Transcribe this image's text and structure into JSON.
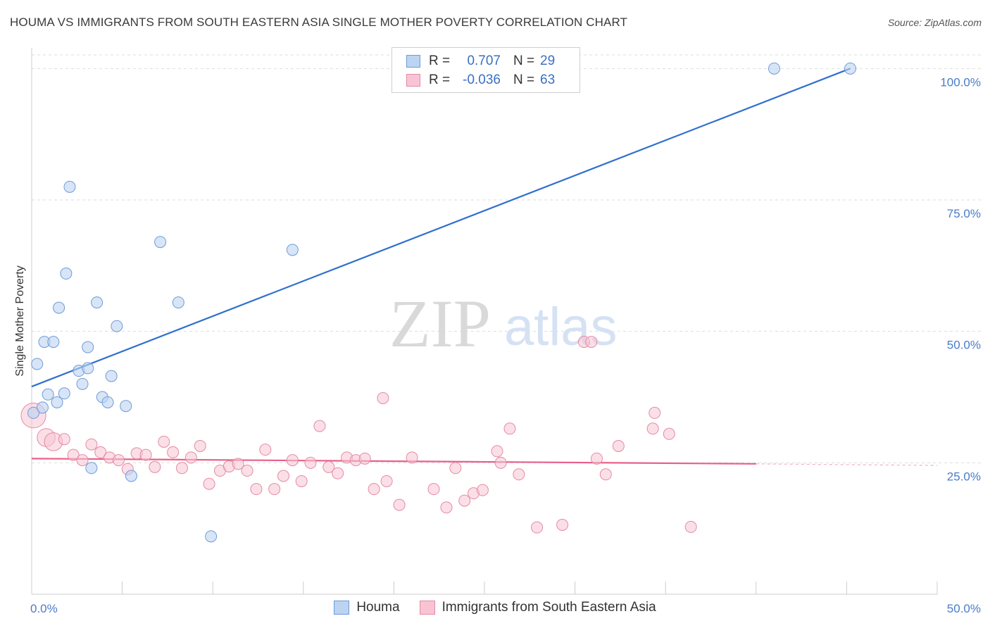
{
  "header": {
    "title": "HOUMA VS IMMIGRANTS FROM SOUTH EASTERN ASIA SINGLE MOTHER POVERTY CORRELATION CHART",
    "source": "Source: ZipAtlas.com"
  },
  "watermark": {
    "zip": "ZIP",
    "atlas": "atlas"
  },
  "legend": {
    "rows": [
      {
        "r_label": "R =",
        "r_value": "0.707",
        "n_label": "N =",
        "n_value": "29"
      },
      {
        "r_label": "R =",
        "r_value": "-0.036",
        "n_label": "N =",
        "n_value": "63"
      }
    ]
  },
  "bottom_legend": {
    "houma": "Houma",
    "sea": "Immigrants from South Eastern Asia"
  },
  "colors": {
    "houma_fill": "#bcd3f2",
    "houma_stroke": "#6f9bd8",
    "houma_line": "#2f6fcf",
    "sea_fill": "#f8c4d3",
    "sea_stroke": "#e48aa6",
    "sea_line": "#e8608a",
    "grid": "#dddddd",
    "axis_text": "#4a7cc9"
  },
  "chart_data": {
    "type": "scatter",
    "title": "HOUMA VS IMMIGRANTS FROM SOUTH EASTERN ASIA SINGLE MOTHER POVERTY CORRELATION CHART",
    "xlabel": "",
    "ylabel": "Single Mother Poverty",
    "xlim": [
      0,
      50
    ],
    "ylim": [
      0,
      105
    ],
    "x_tick_labels": [
      "0.0%",
      "50.0%"
    ],
    "y_ticks": [
      25,
      50,
      75,
      100
    ],
    "y_tick_labels": [
      "25.0%",
      "50.0%",
      "75.0%",
      "100.0%"
    ],
    "grid": true,
    "series": [
      {
        "name": "Houma",
        "r": 0.707,
        "n": 29,
        "points": [
          [
            0.1,
            34.5,
            1
          ],
          [
            0.3,
            43.8,
            1
          ],
          [
            0.6,
            35.5,
            1
          ],
          [
            0.7,
            48.0,
            1
          ],
          [
            0.9,
            38.0,
            1
          ],
          [
            1.2,
            48.0,
            1
          ],
          [
            1.4,
            36.5,
            1
          ],
          [
            1.5,
            54.5,
            1
          ],
          [
            1.8,
            38.2,
            1
          ],
          [
            1.9,
            61.0,
            1
          ],
          [
            2.1,
            77.5,
            1
          ],
          [
            2.6,
            42.5,
            1
          ],
          [
            2.8,
            40.0,
            1
          ],
          [
            3.1,
            43.0,
            1
          ],
          [
            3.1,
            47.0,
            1
          ],
          [
            3.3,
            24.0,
            1
          ],
          [
            3.6,
            55.5,
            1
          ],
          [
            3.9,
            37.5,
            1
          ],
          [
            4.2,
            36.5,
            1
          ],
          [
            4.4,
            41.5,
            1
          ],
          [
            4.7,
            51.0,
            1
          ],
          [
            5.2,
            35.8,
            1
          ],
          [
            5.5,
            22.5,
            1
          ],
          [
            7.1,
            67.0,
            1
          ],
          [
            8.1,
            55.5,
            1
          ],
          [
            9.9,
            11.0,
            1
          ],
          [
            14.4,
            65.5,
            1
          ],
          [
            41.0,
            100.0,
            1
          ],
          [
            45.2,
            100.0,
            1
          ]
        ],
        "trend": {
          "x0": 0.0,
          "y0": 39.5,
          "x1": 45.2,
          "y1": 100.0
        }
      },
      {
        "name": "Immigrants from South Eastern Asia",
        "r": -0.036,
        "n": 63,
        "points": [
          [
            0.1,
            34.0,
            3
          ],
          [
            0.8,
            29.8,
            2
          ],
          [
            1.2,
            29.0,
            2
          ],
          [
            1.8,
            29.5,
            1
          ],
          [
            2.3,
            26.5,
            1
          ],
          [
            2.8,
            25.5,
            1
          ],
          [
            3.3,
            28.5,
            1
          ],
          [
            3.8,
            27.0,
            1
          ],
          [
            4.3,
            26.0,
            1
          ],
          [
            4.8,
            25.5,
            1
          ],
          [
            5.3,
            23.8,
            1
          ],
          [
            5.8,
            26.8,
            1
          ],
          [
            6.3,
            26.5,
            1
          ],
          [
            6.8,
            24.2,
            1
          ],
          [
            7.3,
            29.0,
            1
          ],
          [
            7.8,
            27.0,
            1
          ],
          [
            8.3,
            24.0,
            1
          ],
          [
            8.8,
            26.0,
            1
          ],
          [
            9.3,
            28.2,
            1
          ],
          [
            9.8,
            21.0,
            1
          ],
          [
            10.4,
            23.5,
            1
          ],
          [
            10.9,
            24.3,
            1
          ],
          [
            11.4,
            24.8,
            1
          ],
          [
            11.9,
            23.5,
            1
          ],
          [
            12.4,
            20.0,
            1
          ],
          [
            12.9,
            27.5,
            1
          ],
          [
            13.4,
            20.0,
            1
          ],
          [
            13.9,
            22.5,
            1
          ],
          [
            14.4,
            25.5,
            1
          ],
          [
            14.9,
            21.5,
            1
          ],
          [
            15.4,
            25.0,
            1
          ],
          [
            15.9,
            32.0,
            1
          ],
          [
            16.4,
            24.2,
            1
          ],
          [
            16.9,
            23.0,
            1
          ],
          [
            17.4,
            26.0,
            1
          ],
          [
            17.9,
            25.5,
            1
          ],
          [
            18.4,
            25.8,
            1
          ],
          [
            18.9,
            20.0,
            1
          ],
          [
            19.4,
            37.3,
            1
          ],
          [
            19.6,
            21.5,
            1
          ],
          [
            20.3,
            17.0,
            1
          ],
          [
            21.0,
            26.0,
            1
          ],
          [
            22.2,
            20.0,
            1
          ],
          [
            22.9,
            16.5,
            1
          ],
          [
            23.4,
            24.0,
            1
          ],
          [
            23.9,
            17.8,
            1
          ],
          [
            24.4,
            19.2,
            1
          ],
          [
            24.9,
            19.8,
            1
          ],
          [
            25.7,
            27.2,
            1
          ],
          [
            25.9,
            25.0,
            1
          ],
          [
            26.4,
            31.5,
            1
          ],
          [
            26.9,
            22.8,
            1
          ],
          [
            27.9,
            12.7,
            1
          ],
          [
            29.3,
            13.2,
            1
          ],
          [
            30.5,
            48.0,
            1
          ],
          [
            30.9,
            48.0,
            1
          ],
          [
            31.2,
            25.8,
            1
          ],
          [
            31.7,
            22.8,
            1
          ],
          [
            32.4,
            28.2,
            1
          ],
          [
            34.3,
            31.5,
            1
          ],
          [
            34.4,
            34.5,
            1
          ],
          [
            35.2,
            30.5,
            1
          ],
          [
            36.4,
            12.8,
            1
          ]
        ],
        "trend": {
          "x0": 0.0,
          "y0": 25.8,
          "x1": 40.0,
          "y1": 24.8
        },
        "trend_dashed": {
          "x0": 40.0,
          "y0": 24.8,
          "x1": 50.0,
          "y1": 24.5
        }
      }
    ]
  }
}
